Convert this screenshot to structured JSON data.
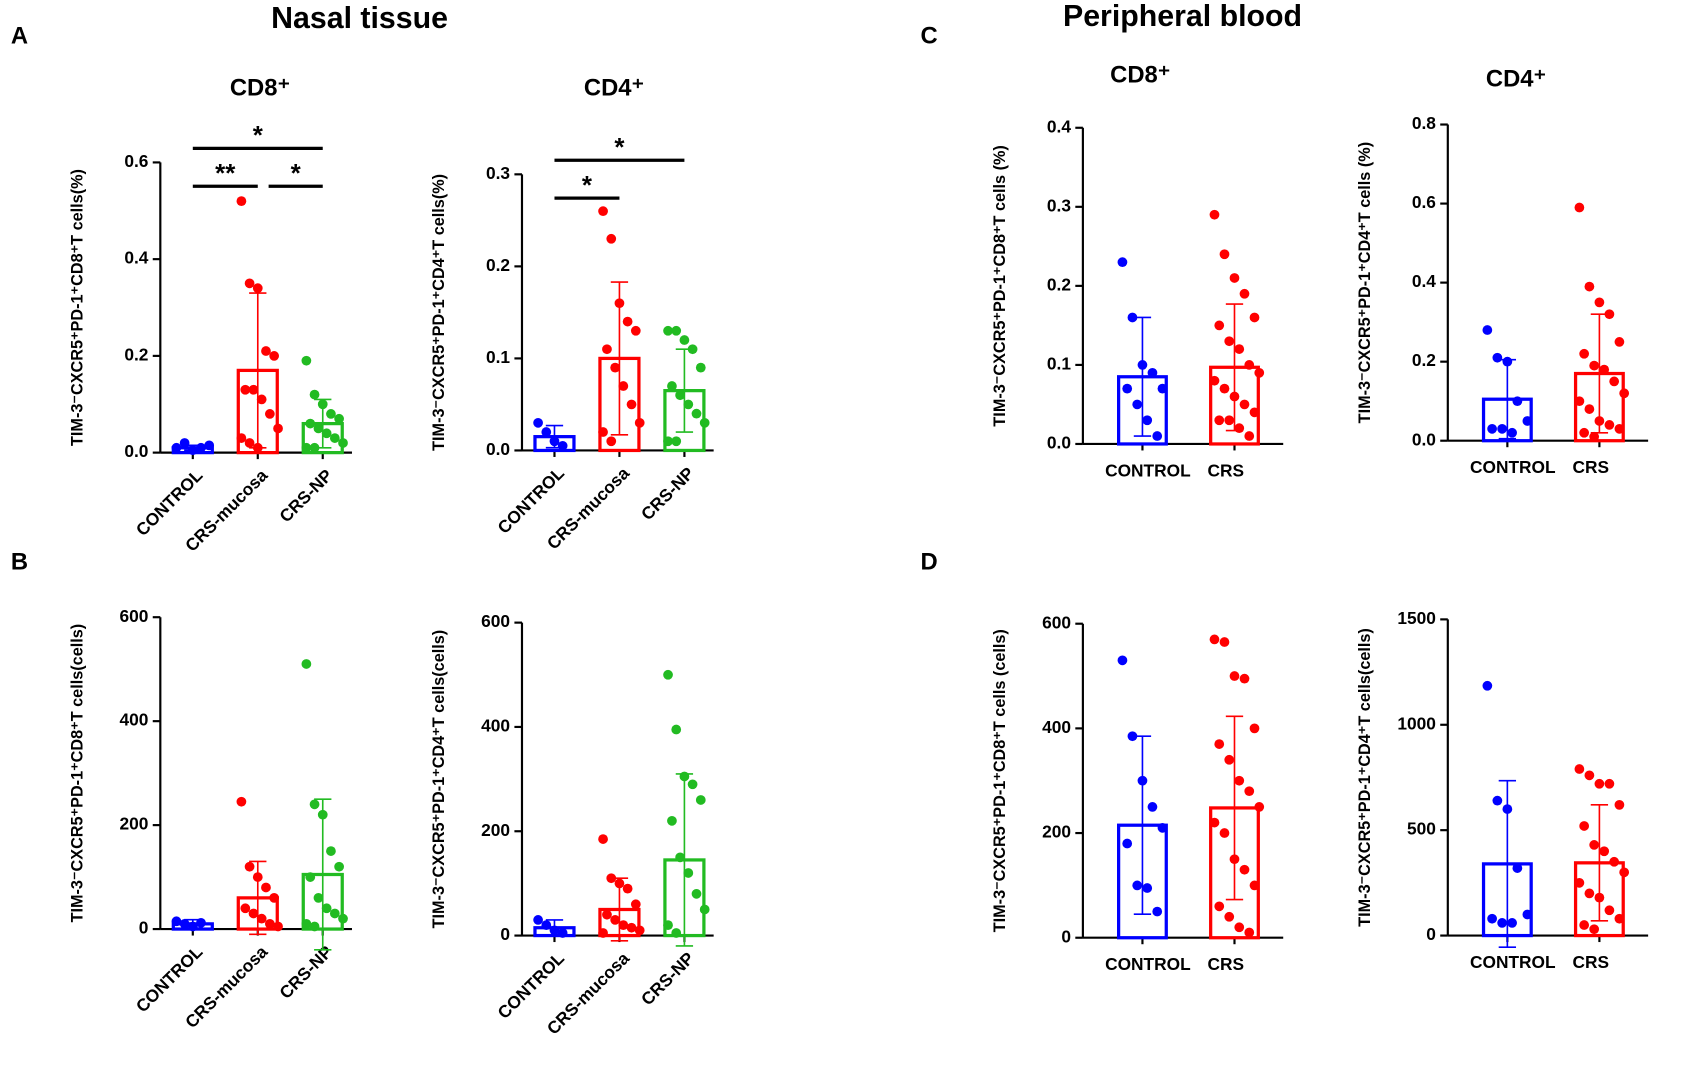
{
  "headers": [
    "Nasal tissue",
    "Peripheral blood"
  ],
  "panel_labels": [
    "A",
    "B",
    "C",
    "D"
  ],
  "chart_data": [
    {
      "type": "bar",
      "title": "CD8⁺",
      "ylabel": "TIM-3⁻CXCR5⁺PD-1⁺CD8⁺T cells(%)",
      "categories": [
        "CONTROL",
        "CRS-mucosa",
        "CRS-NP"
      ],
      "colors": [
        "#0000ff",
        "#ff0000",
        "#22bb22"
      ],
      "values": [
        0.01,
        0.17,
        0.06
      ],
      "errors": [
        0.005,
        0.16,
        0.05
      ],
      "points": [
        [
          0.01,
          0.02,
          0.005,
          0.01,
          0.015
        ],
        [
          0.52,
          0.35,
          0.34,
          0.21,
          0.2,
          0.13,
          0.13,
          0.11,
          0.08,
          0.05,
          0.03,
          0.02,
          0.01
        ],
        [
          0.19,
          0.12,
          0.1,
          0.08,
          0.07,
          0.06,
          0.05,
          0.04,
          0.03,
          0.02,
          0.01,
          0.01
        ]
      ],
      "ylim": [
        0,
        0.6
      ],
      "yticks": [
        {
          "value": 0,
          "label": "0.0"
        },
        0.2,
        0.4,
        0.6
      ],
      "annotations": [
        {
          "text": "*",
          "pair": [
            "CONTROL",
            "CRS-NP"
          ]
        },
        {
          "text": "**",
          "pair": [
            "CONTROL",
            "CRS-mucosa"
          ]
        },
        {
          "text": "*",
          "pair": [
            "CRS-mucosa",
            "CRS-NP"
          ]
        }
      ]
    },
    {
      "type": "bar",
      "title": "CD4⁺",
      "ylabel": "TIM-3⁻CXCR5⁺PD-1⁺CD4⁺T cells(%)",
      "categories": [
        "CONTROL",
        "CRS-mucosa",
        "CRS-NP"
      ],
      "colors": [
        "#0000ff",
        "#ff0000",
        "#22bb22"
      ],
      "values": [
        0.015,
        0.1,
        0.065
      ],
      "errors": [
        0.012,
        0.083,
        0.045
      ],
      "points": [
        [
          0.03,
          0.02,
          0.01,
          0.005
        ],
        [
          0.26,
          0.23,
          0.16,
          0.14,
          0.13,
          0.11,
          0.09,
          0.07,
          0.05,
          0.03,
          0.02,
          0.01
        ],
        [
          0.13,
          0.13,
          0.12,
          0.11,
          0.09,
          0.07,
          0.06,
          0.05,
          0.04,
          0.03,
          0.01,
          0.01
        ]
      ],
      "ylim": [
        0,
        0.3
      ],
      "yticks": [
        {
          "value": 0,
          "label": "0.0"
        },
        0.1,
        0.2,
        0.3
      ],
      "annotations": [
        {
          "text": "*",
          "pair": [
            "CONTROL",
            "CRS-NP"
          ]
        },
        {
          "text": "*",
          "pair": [
            "CONTROL",
            "CRS-mucosa"
          ]
        }
      ]
    },
    {
      "type": "bar",
      "title": "CD8⁺",
      "ylabel": "TIM-3⁻CXCR5⁺PD-1⁺CD8⁺T cells (%)",
      "categories": [
        "CONTROL",
        "CRS"
      ],
      "colors": [
        "#0000ff",
        "#ff0000"
      ],
      "values": [
        0.085,
        0.097
      ],
      "errors": [
        0.075,
        0.08
      ],
      "points": [
        [
          0.23,
          0.16,
          0.1,
          0.09,
          0.07,
          0.07,
          0.05,
          0.03,
          0.01
        ],
        [
          0.29,
          0.24,
          0.21,
          0.19,
          0.16,
          0.15,
          0.13,
          0.12,
          0.1,
          0.09,
          0.08,
          0.07,
          0.06,
          0.05,
          0.04,
          0.03,
          0.03,
          0.02,
          0.01
        ]
      ],
      "ylim": [
        0,
        0.4
      ],
      "yticks": [
        {
          "value": 0,
          "label": "0.0"
        },
        0.1,
        0.2,
        0.3,
        0.4
      ]
    },
    {
      "type": "bar",
      "title": "CD4⁺",
      "ylabel": "TIM-3⁻CXCR5⁺PD-1⁺CD4⁺T cells (%)",
      "categories": [
        "CONTROL",
        "CRS"
      ],
      "colors": [
        "#0000ff",
        "#ff0000"
      ],
      "values": [
        0.105,
        0.17
      ],
      "errors": [
        0.1,
        0.15
      ],
      "points": [
        [
          0.28,
          0.21,
          0.2,
          0.1,
          0.05,
          0.03,
          0.03,
          0.02
        ],
        [
          0.59,
          0.39,
          0.35,
          0.32,
          0.25,
          0.22,
          0.19,
          0.18,
          0.15,
          0.12,
          0.1,
          0.08,
          0.05,
          0.04,
          0.03,
          0.02,
          0.01
        ]
      ],
      "ylim": [
        0,
        0.8
      ],
      "yticks": [
        {
          "value": 0,
          "label": "0.0"
        },
        0.2,
        0.4,
        0.6,
        0.8
      ]
    },
    {
      "type": "bar",
      "ylabel": "TIM-3⁻CXCR5⁺PD-1⁺CD8⁺T cells(cells)",
      "categories": [
        "CONTROL",
        "CRS-mucosa",
        "CRS-NP"
      ],
      "colors": [
        "#0000ff",
        "#ff0000",
        "#22bb22"
      ],
      "values": [
        10,
        60,
        105
      ],
      "errors": [
        8,
        70,
        145
      ],
      "points": [
        [
          15,
          10,
          5,
          12
        ],
        [
          245,
          120,
          100,
          80,
          60,
          40,
          30,
          20,
          10,
          5
        ],
        [
          510,
          240,
          220,
          150,
          120,
          100,
          60,
          40,
          30,
          20,
          10,
          5
        ]
      ],
      "ylim": [
        0,
        600
      ],
      "yticks": [
        0,
        200,
        400,
        600
      ]
    },
    {
      "type": "bar",
      "ylabel": "TIM-3⁻CXCR5⁺PD-1⁺CD4⁺T cells(cells)",
      "categories": [
        "CONTROL",
        "CRS-mucosa",
        "CRS-NP"
      ],
      "colors": [
        "#0000ff",
        "#ff0000",
        "#22bb22"
      ],
      "values": [
        15,
        50,
        145
      ],
      "errors": [
        15,
        60,
        165
      ],
      "points": [
        [
          30,
          20,
          10,
          5
        ],
        [
          185,
          110,
          100,
          90,
          60,
          40,
          30,
          20,
          15,
          10,
          5
        ],
        [
          500,
          395,
          305,
          290,
          260,
          220,
          150,
          120,
          80,
          50,
          20,
          5
        ]
      ],
      "ylim": [
        0,
        600
      ],
      "yticks": [
        0,
        200,
        400,
        600
      ]
    },
    {
      "type": "bar",
      "ylabel": "TIM-3⁻CXCR5⁺PD-1⁺CD8⁺T cells (cells)",
      "categories": [
        "CONTROL",
        "CRS"
      ],
      "colors": [
        "#0000ff",
        "#ff0000"
      ],
      "values": [
        215,
        248
      ],
      "errors": [
        170,
        175
      ],
      "points": [
        [
          530,
          385,
          300,
          250,
          210,
          180,
          100,
          95,
          50
        ],
        [
          570,
          565,
          500,
          495,
          400,
          370,
          340,
          300,
          280,
          250,
          220,
          200,
          150,
          130,
          100,
          60,
          40,
          20,
          10
        ]
      ],
      "ylim": [
        0,
        600
      ],
      "yticks": [
        0,
        200,
        400,
        600
      ]
    },
    {
      "type": "bar",
      "ylabel": "TIM-3⁻CXCR5⁺PD-1⁺CD4⁺T cells(cells)",
      "categories": [
        "CONTROL",
        "CRS"
      ],
      "colors": [
        "#0000ff",
        "#ff0000"
      ],
      "values": [
        340,
        345
      ],
      "errors": [
        395,
        275
      ],
      "points": [
        [
          1185,
          640,
          600,
          320,
          100,
          80,
          60,
          60
        ],
        [
          790,
          760,
          720,
          720,
          620,
          520,
          430,
          400,
          350,
          300,
          250,
          200,
          180,
          120,
          80,
          50,
          30
        ]
      ],
      "ylim": [
        0,
        1500
      ],
      "yticks": [
        0,
        500,
        1000,
        1500
      ]
    }
  ]
}
